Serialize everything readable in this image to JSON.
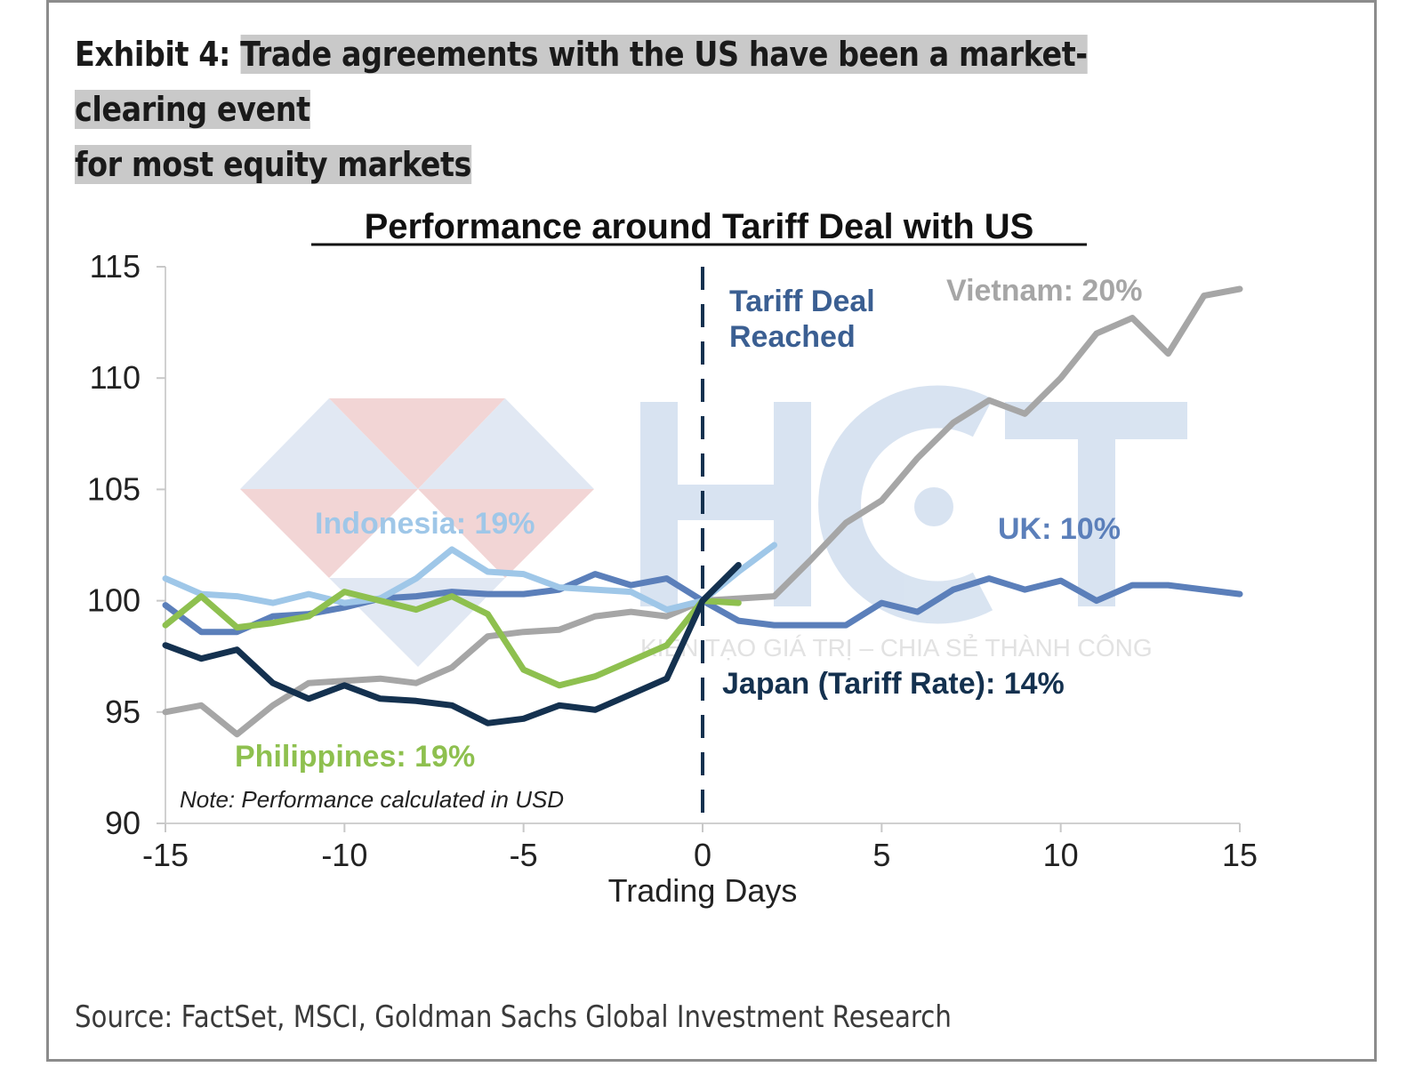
{
  "exhibit": {
    "label": "Exhibit 4:",
    "title_line1": "Trade agreements with the US have been a market-clearing event",
    "title_line2": "for most equity markets"
  },
  "source": "Source: FactSet, MSCI, Goldman Sachs Global Investment Research",
  "watermark": {
    "text": "KIẾN TẠO GIÁ TRỊ – CHIA SẺ THÀNH CÔNG"
  },
  "chart_data": {
    "type": "line",
    "title": "Performance around Tariff Deal with US",
    "xlabel": "Trading Days",
    "ylabel": "",
    "xlim": [
      -15,
      15
    ],
    "ylim": [
      90,
      115
    ],
    "xticks": [
      "-15",
      "-10",
      "-5",
      "0",
      "5",
      "10",
      "15"
    ],
    "yticks": [
      "90",
      "95",
      "100",
      "105",
      "110",
      "115"
    ],
    "annotations": {
      "deal": [
        "Tariff Deal",
        "Reached"
      ],
      "note": "Note: Performance calculated in USD"
    },
    "series": [
      {
        "name": "Vietnam",
        "label": "Vietnam: 20%",
        "color": "#a6a6a6",
        "x": [
          -15,
          -14,
          -13,
          -12,
          -11,
          -10,
          -9,
          -8,
          -7,
          -6,
          -5,
          -4,
          -3,
          -2,
          -1,
          0,
          1,
          2,
          3,
          4,
          5,
          6,
          7,
          8,
          9,
          10,
          11,
          12,
          13,
          14,
          15
        ],
        "values": [
          95.0,
          95.3,
          94.0,
          95.3,
          96.3,
          96.4,
          96.5,
          96.3,
          97.0,
          98.4,
          98.6,
          98.7,
          99.3,
          99.5,
          99.3,
          100.0,
          100.1,
          100.2,
          101.8,
          103.5,
          104.5,
          106.4,
          108.0,
          109.0,
          108.4,
          110.0,
          112.0,
          112.7,
          111.1,
          113.7,
          114.0
        ]
      },
      {
        "name": "UK",
        "label": "UK: 10%",
        "color": "#5b7fba",
        "x": [
          -15,
          -14,
          -13,
          -12,
          -11,
          -10,
          -9,
          -8,
          -7,
          -6,
          -5,
          -4,
          -3,
          -2,
          -1,
          0,
          1,
          2,
          3,
          4,
          5,
          6,
          7,
          8,
          9,
          10,
          11,
          12,
          13,
          14,
          15
        ],
        "values": [
          99.8,
          98.6,
          98.6,
          99.3,
          99.4,
          99.7,
          100.1,
          100.2,
          100.4,
          100.3,
          100.3,
          100.5,
          101.2,
          100.7,
          101.0,
          100.0,
          99.1,
          98.9,
          98.9,
          98.9,
          99.9,
          99.5,
          100.5,
          101.0,
          100.5,
          100.9,
          100.0,
          100.7,
          100.7,
          100.5,
          100.3
        ]
      },
      {
        "name": "Indonesia",
        "label": "Indonesia: 19%",
        "color": "#9fc7e8",
        "x": [
          -15,
          -14,
          -13,
          -12,
          -11,
          -10,
          -9,
          -8,
          -7,
          -6,
          -5,
          -4,
          -3,
          -2,
          -1,
          0,
          1,
          2
        ],
        "values": [
          101.0,
          100.3,
          100.2,
          99.9,
          100.3,
          99.9,
          100.1,
          101.0,
          102.3,
          101.3,
          101.2,
          100.6,
          100.5,
          100.4,
          99.6,
          100.0,
          101.3,
          102.5
        ]
      },
      {
        "name": "Philippines",
        "label": "Philippines: 19%",
        "color": "#8ec04f",
        "x": [
          -15,
          -14,
          -13,
          -12,
          -11,
          -10,
          -9,
          -8,
          -7,
          -6,
          -5,
          -4,
          -3,
          -2,
          -1,
          0,
          1
        ],
        "values": [
          98.9,
          100.2,
          98.8,
          99.0,
          99.3,
          100.4,
          100.0,
          99.6,
          100.2,
          99.4,
          96.9,
          96.2,
          96.6,
          97.3,
          98.0,
          100.0,
          99.9
        ]
      },
      {
        "name": "Japan",
        "label": "Japan (Tariff Rate): 14%",
        "color": "#14314f",
        "x": [
          -15,
          -14,
          -13,
          -12,
          -11,
          -10,
          -9,
          -8,
          -7,
          -6,
          -5,
          -4,
          -3,
          -2,
          -1,
          0,
          1
        ],
        "values": [
          98.0,
          97.4,
          97.8,
          96.3,
          95.6,
          96.2,
          95.6,
          95.5,
          95.3,
          94.5,
          94.7,
          95.3,
          95.1,
          95.8,
          96.5,
          100.0,
          101.6
        ]
      }
    ]
  }
}
